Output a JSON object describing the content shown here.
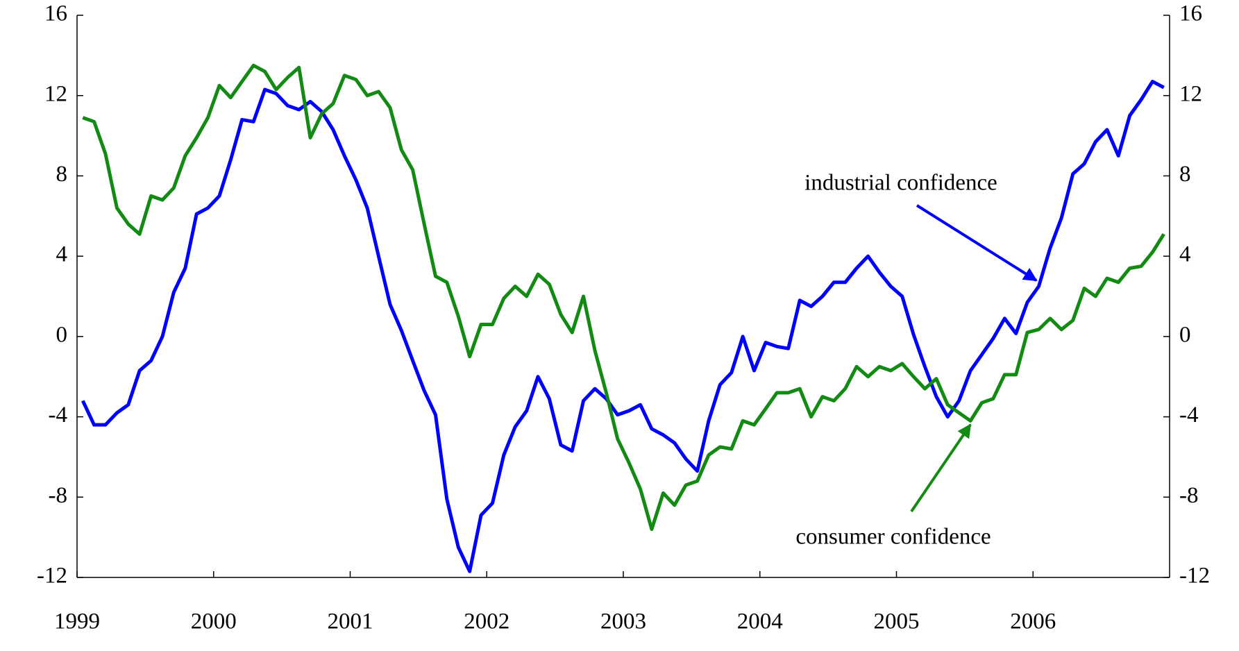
{
  "chart_data": {
    "type": "line",
    "x": [
      1999.042,
      1999.125,
      1999.208,
      1999.292,
      1999.375,
      1999.458,
      1999.542,
      1999.625,
      1999.708,
      1999.792,
      1999.875,
      1999.958,
      2000.042,
      2000.125,
      2000.208,
      2000.292,
      2000.375,
      2000.458,
      2000.542,
      2000.625,
      2000.708,
      2000.792,
      2000.875,
      2000.958,
      2001.042,
      2001.125,
      2001.208,
      2001.292,
      2001.375,
      2001.458,
      2001.542,
      2001.625,
      2001.708,
      2001.792,
      2001.875,
      2001.958,
      2002.042,
      2002.125,
      2002.208,
      2002.292,
      2002.375,
      2002.458,
      2002.542,
      2002.625,
      2002.708,
      2002.792,
      2002.875,
      2002.958,
      2003.042,
      2003.125,
      2003.208,
      2003.292,
      2003.375,
      2003.458,
      2003.542,
      2003.625,
      2003.708,
      2003.792,
      2003.875,
      2003.958,
      2004.042,
      2004.125,
      2004.208,
      2004.292,
      2004.375,
      2004.458,
      2004.542,
      2004.625,
      2004.708,
      2004.792,
      2004.875,
      2004.958,
      2005.042,
      2005.125,
      2005.208,
      2005.292,
      2005.375,
      2005.458,
      2005.542,
      2005.625,
      2005.708,
      2005.792,
      2005.875,
      2005.958,
      2006.042,
      2006.125,
      2006.208,
      2006.292,
      2006.375,
      2006.458,
      2006.542,
      2006.625,
      2006.708,
      2006.792,
      2006.875,
      2006.958
    ],
    "series": [
      {
        "name": "industrial confidence",
        "color": "#0000ff",
        "values": [
          -3.2,
          -4.4,
          -4.4,
          -3.8,
          -3.4,
          -1.7,
          -1.2,
          0,
          2.2,
          3.4,
          6.1,
          6.4,
          7.0,
          8.8,
          10.8,
          10.7,
          12.3,
          12.1,
          11.5,
          11.3,
          11.7,
          11.2,
          10.3,
          9.0,
          7.8,
          6.4,
          4.0,
          1.6,
          0.3,
          -1.2,
          -2.7,
          -3.9,
          -8.1,
          -10.5,
          -11.7,
          -8.9,
          -8.3,
          -5.9,
          -4.5,
          -3.7,
          -2.0,
          -3.1,
          -5.4,
          -5.7,
          -3.2,
          -2.6,
          -3.1,
          -3.9,
          -3.7,
          -3.4,
          -4.6,
          -4.9,
          -5.3,
          -6.1,
          -6.7,
          -4.2,
          -2.4,
          -1.8,
          0,
          -1.7,
          -0.3,
          -0.5,
          -0.6,
          1.8,
          1.5,
          2.0,
          2.7,
          2.7,
          3.4,
          4.0,
          3.2,
          2.5,
          2.0,
          0.1,
          -1.5,
          -3.0,
          -4.0,
          -3.2,
          -1.7,
          -0.9,
          -0.1,
          0.9,
          0.15,
          1.7,
          2.5,
          4.4,
          5.9,
          8.1,
          8.6,
          9.7,
          10.3,
          9.0,
          11.0,
          11.8,
          12.7,
          12.4
        ]
      },
      {
        "name": "consumer confidence",
        "color": "#138a13",
        "values": [
          10.9,
          10.7,
          9.1,
          6.4,
          5.6,
          5.1,
          7.0,
          6.8,
          7.4,
          9.0,
          9.9,
          10.9,
          12.5,
          11.9,
          12.7,
          13.5,
          13.2,
          12.3,
          12.9,
          13.4,
          9.9,
          11.1,
          11.6,
          13.0,
          12.8,
          12.0,
          12.2,
          11.4,
          9.3,
          8.3,
          5.6,
          3.0,
          2.7,
          1.0,
          -1.0,
          0.6,
          0.6,
          1.9,
          2.5,
          2.0,
          3.1,
          2.6,
          1.1,
          0.2,
          2.0,
          -0.7,
          -2.8,
          -5.1,
          -6.3,
          -7.6,
          -9.6,
          -7.8,
          -8.4,
          -7.4,
          -7.2,
          -5.9,
          -5.5,
          -5.6,
          -4.2,
          -4.4,
          -3.6,
          -2.8,
          -2.8,
          -2.6,
          -4.0,
          -3.0,
          -3.2,
          -2.6,
          -1.5,
          -2.0,
          -1.5,
          -1.7,
          -1.35,
          -2.0,
          -2.6,
          -2.1,
          -3.4,
          -3.8,
          -4.2,
          -3.3,
          -3.1,
          -1.9,
          -1.9,
          0.2,
          0.35,
          0.9,
          0.35,
          0.8,
          2.4,
          2.0,
          2.9,
          2.7,
          3.4,
          3.5,
          4.2,
          5.1
        ]
      }
    ],
    "annotations": [
      "industrial confidence",
      "consumer confidence"
    ],
    "xlim": [
      1999,
      2007
    ],
    "xticks": [
      1999,
      2000,
      2001,
      2002,
      2003,
      2004,
      2005,
      2006
    ],
    "ylim": [
      -12,
      16
    ],
    "yticks": [
      -12,
      -8,
      -4,
      0,
      4,
      8,
      12,
      16
    ],
    "y2lim": [
      -12,
      16
    ],
    "y2ticks": [
      -12,
      -8,
      -4,
      0,
      4,
      8,
      12,
      16
    ],
    "grid": false
  }
}
